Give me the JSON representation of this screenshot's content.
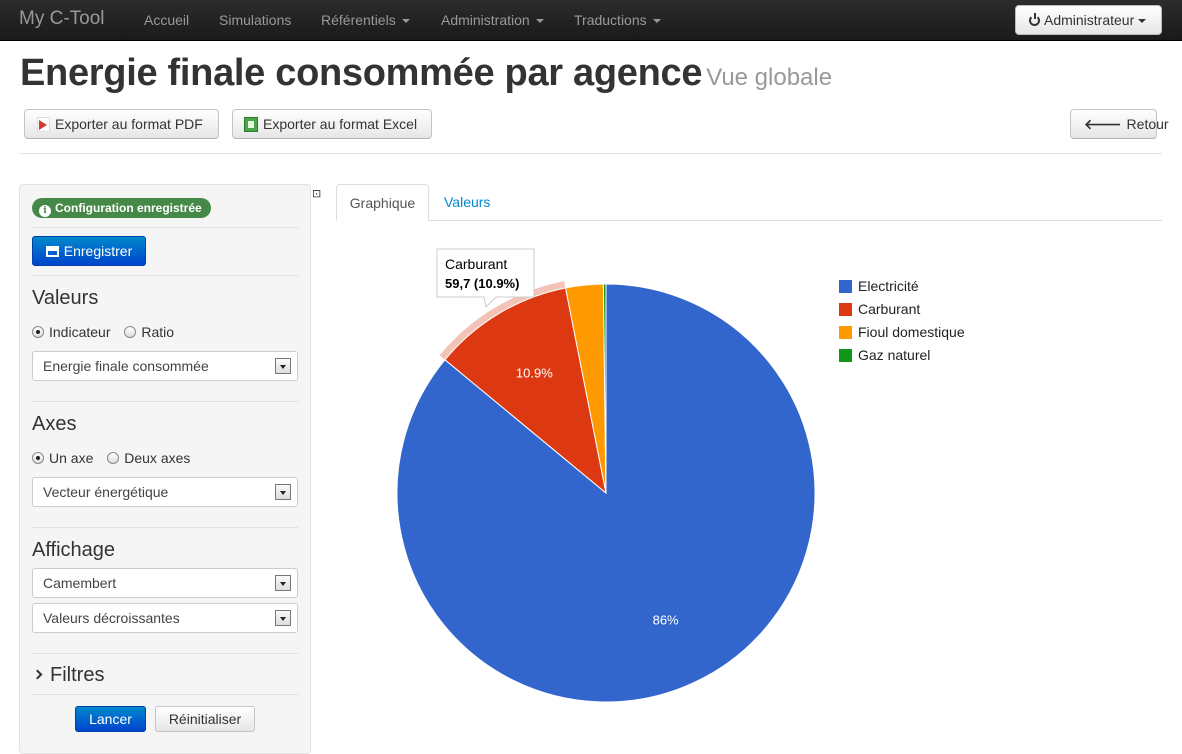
{
  "navbar": {
    "brand": "My C-Tool",
    "items": [
      {
        "label": "Accueil",
        "dropdown": false
      },
      {
        "label": "Simulations",
        "dropdown": false
      },
      {
        "label": "Référentiels",
        "dropdown": true
      },
      {
        "label": "Administration",
        "dropdown": true
      },
      {
        "label": "Traductions",
        "dropdown": true
      }
    ],
    "user_button": "Administrateur"
  },
  "header": {
    "title": "Energie finale consommée par agence",
    "subtitle": "Vue globale",
    "export_pdf": "Exporter au format PDF",
    "export_excel": "Exporter au format Excel",
    "back": "Retour"
  },
  "sidebar": {
    "status_badge": "Configuration enregistrée",
    "save_button": "Enregistrer",
    "valeurs": {
      "title": "Valeurs",
      "radio_options": [
        {
          "label": "Indicateur",
          "checked": true
        },
        {
          "label": "Ratio",
          "checked": false
        }
      ],
      "select": "Energie finale consommée"
    },
    "axes": {
      "title": "Axes",
      "radio_options": [
        {
          "label": "Un axe",
          "checked": true
        },
        {
          "label": "Deux axes",
          "checked": false
        }
      ],
      "select": "Vecteur énergétique"
    },
    "affichage": {
      "title": "Affichage",
      "select_type": "Camembert",
      "select_order": "Valeurs décroissantes"
    },
    "filtres": {
      "title": "Filtres"
    },
    "launch_button": "Lancer",
    "reset_button": "Réinitialiser"
  },
  "tabs": [
    {
      "label": "Graphique",
      "active": true
    },
    {
      "label": "Valeurs",
      "active": false
    }
  ],
  "chart_data": {
    "type": "pie",
    "title": "",
    "slices": [
      {
        "name": "Electricité",
        "percent": 86.0,
        "label": "86%",
        "color": "#3366cc"
      },
      {
        "name": "Carburant",
        "percent": 10.9,
        "label": "10.9%",
        "color": "#dc3912"
      },
      {
        "name": "Fioul domestique",
        "percent": 2.9,
        "label": "",
        "color": "#ff9900"
      },
      {
        "name": "Gaz naturel",
        "percent": 0.2,
        "label": "",
        "color": "#109618"
      }
    ],
    "legend_position": "right",
    "start_angle": "12 o'clock, clockwise",
    "highlighted_slice": "Carburant",
    "tooltip": {
      "title": "Carburant",
      "value": "59,7 (10.9%)"
    }
  }
}
